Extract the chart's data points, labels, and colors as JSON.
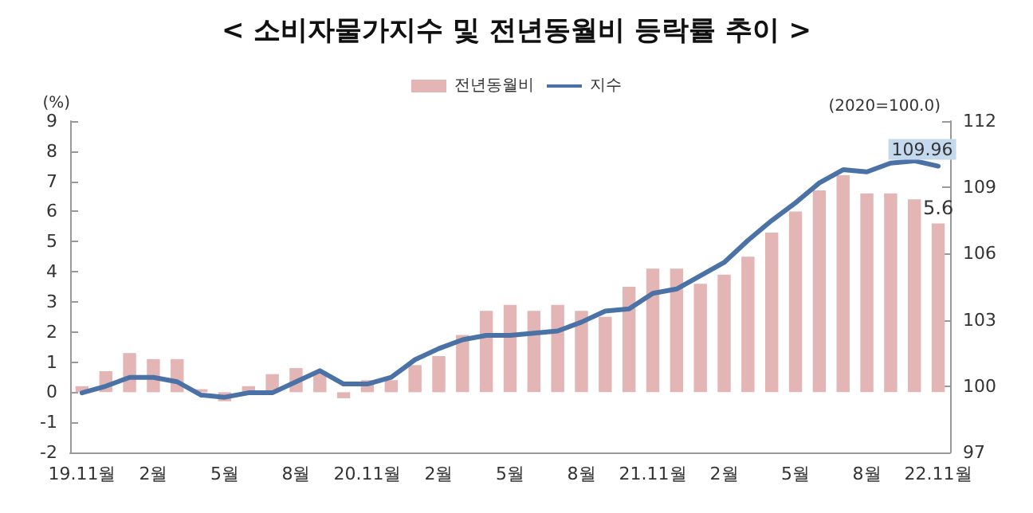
{
  "chart_data": {
    "type": "bar",
    "title": "< 소비자물가지수 및 전년동월비 등락률 추이 >",
    "ylabel": "(%)",
    "annotations": [
      "(2020=100.0)"
    ],
    "categories": [
      "19.11월",
      null,
      null,
      "2월",
      null,
      null,
      "5월",
      null,
      null,
      "8월",
      null,
      null,
      "20.11월",
      null,
      null,
      "2월",
      null,
      null,
      "5월",
      null,
      null,
      "8월",
      null,
      null,
      "21.11월",
      null,
      null,
      "2월",
      null,
      null,
      "5월",
      null,
      null,
      "8월",
      null,
      null,
      "22.11월"
    ],
    "series": [
      {
        "name": "전년동월비",
        "color": "#e3b5b4",
        "values": [
          0.2,
          0.7,
          1.3,
          1.1,
          1.1,
          0.1,
          -0.3,
          0.2,
          0.6,
          0.8,
          0.7,
          -0.2,
          0.4,
          0.4,
          0.9,
          1.2,
          1.9,
          2.7,
          2.9,
          2.7,
          2.9,
          2.7,
          2.5,
          3.5,
          4.1,
          4.1,
          3.6,
          3.9,
          4.5,
          5.3,
          6.0,
          6.7,
          7.2,
          6.6,
          6.6,
          6.4,
          5.6
        ],
        "value_labels": [
          null,
          null,
          null,
          null,
          null,
          null,
          null,
          null,
          null,
          null,
          null,
          null,
          null,
          null,
          null,
          null,
          null,
          null,
          null,
          null,
          null,
          null,
          null,
          null,
          null,
          null,
          null,
          null,
          null,
          null,
          null,
          null,
          null,
          null,
          null,
          null,
          "5.6"
        ]
      },
      {
        "name": "지수",
        "type": "line",
        "axis": "y2",
        "color": "#4a72a6",
        "values": [
          99.7,
          100.0,
          100.4,
          100.4,
          100.2,
          99.6,
          99.5,
          99.7,
          99.7,
          100.2,
          100.7,
          100.1,
          100.1,
          100.4,
          101.2,
          101.7,
          102.1,
          102.3,
          102.3,
          102.4,
          102.5,
          102.9,
          103.4,
          103.5,
          104.2,
          104.4,
          105.0,
          105.6,
          106.6,
          107.5,
          108.3,
          109.2,
          109.8,
          109.7,
          110.1,
          110.2,
          109.96
        ],
        "value_labels": [
          null,
          null,
          null,
          null,
          null,
          null,
          null,
          null,
          null,
          null,
          null,
          null,
          null,
          null,
          null,
          null,
          null,
          null,
          null,
          null,
          null,
          null,
          null,
          null,
          null,
          null,
          null,
          null,
          null,
          null,
          null,
          null,
          null,
          null,
          null,
          null,
          "109.96"
        ]
      }
    ],
    "ylim": [
      -2,
      9
    ],
    "yticks": [
      -2,
      -1,
      0,
      1,
      2,
      3,
      4,
      5,
      6,
      7,
      8,
      9
    ],
    "y2lim": [
      97,
      112
    ],
    "y2ticks": [
      97,
      100,
      103,
      106,
      109,
      112
    ],
    "grid": false,
    "legend": "top",
    "marker": "none",
    "line_style": "solid"
  }
}
